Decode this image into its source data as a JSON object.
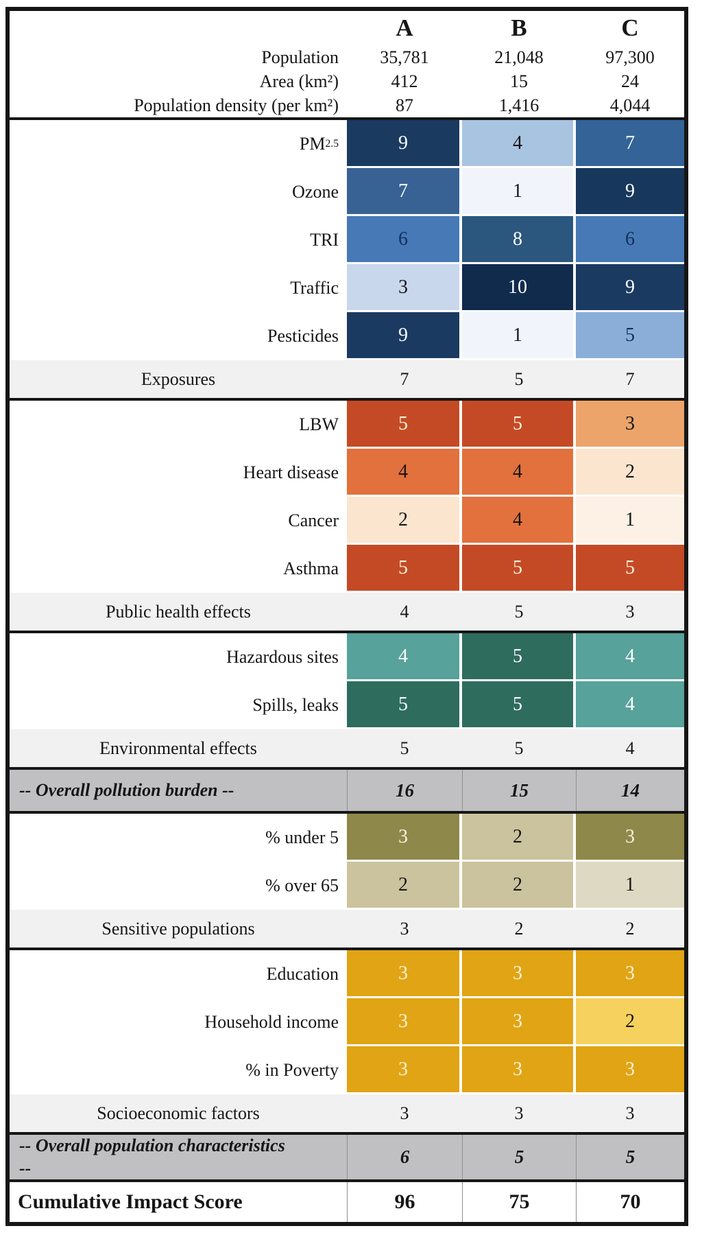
{
  "columns": [
    "A",
    "B",
    "C"
  ],
  "header": {
    "rows": [
      {
        "label": "Population",
        "values": [
          "35,781",
          "21,048",
          "97,300"
        ]
      },
      {
        "label": "Area (km²)",
        "values": [
          "412",
          "15",
          "24"
        ]
      },
      {
        "label": "Population density (per km²)",
        "values": [
          "87",
          "1,416",
          "4,044"
        ]
      }
    ]
  },
  "blocks": [
    {
      "type": "category",
      "name": "exposures",
      "rows": [
        {
          "label": "PM",
          "label_sub": "2.5",
          "values": [
            "9",
            "4",
            "7"
          ],
          "bg": [
            "#1a3a60",
            "#a9c4e1",
            "#336397"
          ],
          "fg": [
            "#ffffff",
            "#161616",
            "#ffffff"
          ]
        },
        {
          "label": "Ozone",
          "values": [
            "7",
            "1",
            "9"
          ],
          "bg": [
            "#386294",
            "#f1f5fb",
            "#17375c"
          ],
          "fg": [
            "#ffffff",
            "#161616",
            "#ffffff"
          ]
        },
        {
          "label": "TRI",
          "values": [
            "6",
            "8",
            "6"
          ],
          "bg": [
            "#4679b6",
            "#2b567d",
            "#4679b6"
          ],
          "fg": [
            "#14305a",
            "#ffffff",
            "#14305a"
          ]
        },
        {
          "label": "Traffic",
          "values": [
            "3",
            "10",
            "9"
          ],
          "bg": [
            "#c8d7eb",
            "#112b4d",
            "#1b3a61"
          ],
          "fg": [
            "#161616",
            "#ffffff",
            "#ffffff"
          ]
        },
        {
          "label": "Pesticides",
          "values": [
            "9",
            "1",
            "5"
          ],
          "bg": [
            "#1b3a61",
            "#f1f5fb",
            "#8aaed8"
          ],
          "fg": [
            "#ffffff",
            "#161616",
            "#14305a"
          ]
        }
      ],
      "summary": {
        "label": "Exposures",
        "values": [
          "7",
          "5",
          "7"
        ]
      }
    },
    {
      "type": "category",
      "name": "public-health",
      "rows": [
        {
          "label": "LBW",
          "values": [
            "5",
            "5",
            "3"
          ],
          "bg": [
            "#c44a26",
            "#c44a26",
            "#eca46a"
          ],
          "fg": [
            "#faf3da",
            "#faf3da",
            "#161616"
          ]
        },
        {
          "label": "Heart disease",
          "values": [
            "4",
            "4",
            "2"
          ],
          "bg": [
            "#e2713d",
            "#e2713d",
            "#fce5cf"
          ],
          "fg": [
            "#161616",
            "#161616",
            "#161616"
          ]
        },
        {
          "label": "Cancer",
          "values": [
            "2",
            "4",
            "1"
          ],
          "bg": [
            "#fce5cf",
            "#e2713d",
            "#fdf1e5"
          ],
          "fg": [
            "#161616",
            "#161616",
            "#161616"
          ]
        },
        {
          "label": "Asthma",
          "values": [
            "5",
            "5",
            "5"
          ],
          "bg": [
            "#c44a26",
            "#c44a26",
            "#c44a26"
          ],
          "fg": [
            "#faf3da",
            "#faf3da",
            "#faf3da"
          ]
        }
      ],
      "summary": {
        "label": "Public health effects",
        "values": [
          "4",
          "5",
          "3"
        ]
      }
    },
    {
      "type": "category",
      "name": "environmental",
      "rows": [
        {
          "label": "Hazardous sites",
          "values": [
            "4",
            "5",
            "4"
          ],
          "bg": [
            "#57a29b",
            "#2e6c5e",
            "#57a29b"
          ],
          "fg": [
            "#ffffff",
            "#ffffff",
            "#ffffff"
          ]
        },
        {
          "label": "Spills, leaks",
          "values": [
            "5",
            "5",
            "4"
          ],
          "bg": [
            "#2e6c5e",
            "#2e6c5e",
            "#57a29b"
          ],
          "fg": [
            "#ffffff",
            "#ffffff",
            "#ffffff"
          ]
        }
      ],
      "summary": {
        "label": "Environmental effects",
        "values": [
          "5",
          "5",
          "4"
        ]
      }
    },
    {
      "type": "overall",
      "name": "overall-pollution-burden",
      "label": "-- Overall pollution burden --",
      "values": [
        "16",
        "15",
        "14"
      ]
    },
    {
      "type": "category",
      "name": "sensitive-populations",
      "rows": [
        {
          "label": "% under 5",
          "values": [
            "3",
            "2",
            "3"
          ],
          "bg": [
            "#8f884b",
            "#cac39d",
            "#8f884b"
          ],
          "fg": [
            "#faf3da",
            "#161616",
            "#faf3da"
          ]
        },
        {
          "label": "% over 65",
          "values": [
            "2",
            "2",
            "1"
          ],
          "bg": [
            "#cac39d",
            "#cac39d",
            "#ddd9c3"
          ],
          "fg": [
            "#161616",
            "#161616",
            "#161616"
          ]
        }
      ],
      "summary": {
        "label": "Sensitive populations",
        "values": [
          "3",
          "2",
          "2"
        ]
      }
    },
    {
      "type": "category",
      "name": "socioeconomic",
      "rows": [
        {
          "label": "Education",
          "values": [
            "3",
            "3",
            "3"
          ],
          "bg": [
            "#e0a414",
            "#e0a414",
            "#e0a414"
          ],
          "fg": [
            "#faf3da",
            "#faf3da",
            "#faf3da"
          ]
        },
        {
          "label": "Household income",
          "values": [
            "3",
            "3",
            "2"
          ],
          "bg": [
            "#e0a414",
            "#e0a414",
            "#f6d15e"
          ],
          "fg": [
            "#faf3da",
            "#faf3da",
            "#161616"
          ]
        },
        {
          "label": "% in Poverty",
          "values": [
            "3",
            "3",
            "3"
          ],
          "bg": [
            "#e0a414",
            "#e0a414",
            "#e0a414"
          ],
          "fg": [
            "#faf3da",
            "#faf3da",
            "#faf3da"
          ]
        }
      ],
      "summary": {
        "label": "Socioeconomic factors",
        "values": [
          "3",
          "3",
          "3"
        ]
      }
    },
    {
      "type": "overall",
      "name": "overall-population-characteristics",
      "label": "-- Overall population characteristics --",
      "values": [
        "6",
        "5",
        "5"
      ]
    },
    {
      "type": "total",
      "name": "cumulative-impact-score",
      "label": "Cumulative Impact Score",
      "values": [
        "96",
        "75",
        "70"
      ]
    }
  ],
  "colors": {
    "frame_border": "#161616",
    "summary_row_bg": "#f1f1f1",
    "overall_row_bg": "#c0c0c3",
    "cell_gap": "#ffffff"
  },
  "chart_data": {
    "type": "heatmap",
    "columns": [
      "A",
      "B",
      "C"
    ],
    "metadata_rows": [
      {
        "label": "Population",
        "values": [
          35781,
          21048,
          97300
        ]
      },
      {
        "label": "Area (km²)",
        "values": [
          412,
          15,
          24
        ]
      },
      {
        "label": "Population density (per km²)",
        "values": [
          87,
          1416,
          4044
        ]
      }
    ],
    "groups": [
      {
        "name": "Exposures",
        "palette": "blues",
        "score_range": [
          1,
          10
        ],
        "rows": [
          {
            "label": "PM2.5",
            "values": [
              9,
              4,
              7
            ]
          },
          {
            "label": "Ozone",
            "values": [
              7,
              1,
              9
            ]
          },
          {
            "label": "TRI",
            "values": [
              6,
              8,
              6
            ]
          },
          {
            "label": "Traffic",
            "values": [
              3,
              10,
              9
            ]
          },
          {
            "label": "Pesticides",
            "values": [
              9,
              1,
              5
            ]
          }
        ],
        "summary": {
          "label": "Exposures",
          "values": [
            7,
            5,
            7
          ]
        }
      },
      {
        "name": "Public health effects",
        "palette": "orange-red",
        "score_range": [
          1,
          5
        ],
        "rows": [
          {
            "label": "LBW",
            "values": [
              5,
              5,
              3
            ]
          },
          {
            "label": "Heart disease",
            "values": [
              4,
              4,
              2
            ]
          },
          {
            "label": "Cancer",
            "values": [
              2,
              4,
              1
            ]
          },
          {
            "label": "Asthma",
            "values": [
              5,
              5,
              5
            ]
          }
        ],
        "summary": {
          "label": "Public health effects",
          "values": [
            4,
            5,
            3
          ]
        }
      },
      {
        "name": "Environmental effects",
        "palette": "teal",
        "score_range": [
          1,
          5
        ],
        "rows": [
          {
            "label": "Hazardous sites",
            "values": [
              4,
              5,
              4
            ]
          },
          {
            "label": "Spills, leaks",
            "values": [
              5,
              5,
              4
            ]
          }
        ],
        "summary": {
          "label": "Environmental effects",
          "values": [
            5,
            5,
            4
          ]
        }
      },
      {
        "name": "Sensitive populations",
        "palette": "olive",
        "score_range": [
          1,
          3
        ],
        "rows": [
          {
            "label": "% under 5",
            "values": [
              3,
              2,
              3
            ]
          },
          {
            "label": "% over 65",
            "values": [
              2,
              2,
              1
            ]
          }
        ],
        "summary": {
          "label": "Sensitive populations",
          "values": [
            3,
            2,
            2
          ]
        }
      },
      {
        "name": "Socioeconomic factors",
        "palette": "gold",
        "score_range": [
          1,
          3
        ],
        "rows": [
          {
            "label": "Education",
            "values": [
              3,
              3,
              3
            ]
          },
          {
            "label": "Household income",
            "values": [
              3,
              3,
              2
            ]
          },
          {
            "label": "% in Poverty",
            "values": [
              3,
              3,
              3
            ]
          }
        ],
        "summary": {
          "label": "Socioeconomic factors",
          "values": [
            3,
            3,
            3
          ]
        }
      }
    ],
    "overall_rows": [
      {
        "label": "-- Overall pollution burden --",
        "values": [
          16,
          15,
          14
        ]
      },
      {
        "label": "-- Overall population characteristics --",
        "values": [
          6,
          5,
          5
        ]
      }
    ],
    "total": {
      "label": "Cumulative Impact Score",
      "values": [
        96,
        75,
        70
      ]
    }
  }
}
